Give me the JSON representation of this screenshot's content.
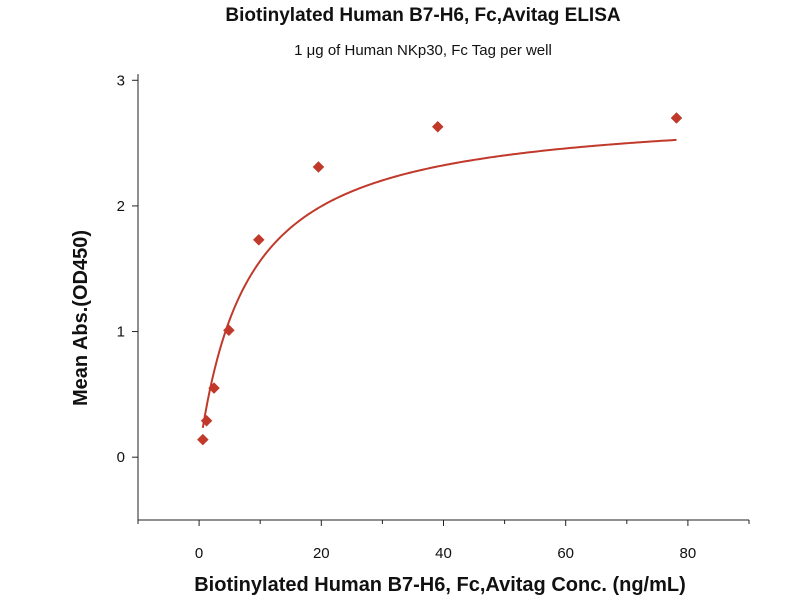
{
  "chart_data": {
    "type": "scatter",
    "title": "Biotinylated Human B7-H6, Fc,Avitag ELISA",
    "subtitle": "1 μg of Human NKp30, Fc Tag per well",
    "xlabel": "Biotinylated Human B7-H6, Fc,Avitag Conc. (ng/mL)",
    "ylabel": "Mean Abs.(OD450)",
    "xlim": [
      -10,
      90
    ],
    "ylim": [
      -0.5,
      3.05
    ],
    "x_ticks": [
      0,
      20,
      40,
      60,
      80
    ],
    "y_ticks": [
      0,
      1,
      2,
      3
    ],
    "x_tick_labels": [
      "0",
      "20",
      "40",
      "60",
      "80"
    ],
    "y_tick_labels": [
      "0",
      "1",
      "2",
      "3"
    ],
    "grid": false,
    "series": [
      {
        "marker": "diamond",
        "color": "#c0392b",
        "points": [
          {
            "x": 0.61,
            "y": 0.14
          },
          {
            "x": 1.22,
            "y": 0.29
          },
          {
            "x": 2.44,
            "y": 0.55
          },
          {
            "x": 4.88,
            "y": 1.01
          },
          {
            "x": 9.77,
            "y": 1.73
          },
          {
            "x": 19.53,
            "y": 2.31
          },
          {
            "x": 39.06,
            "y": 2.63
          },
          {
            "x": 78.13,
            "y": 2.7
          }
        ],
        "fit": {
          "model": "hyperbola",
          "ymin": 0.04,
          "ymax": 2.78,
          "k": 8.0,
          "color": "#c0392b"
        }
      }
    ]
  }
}
